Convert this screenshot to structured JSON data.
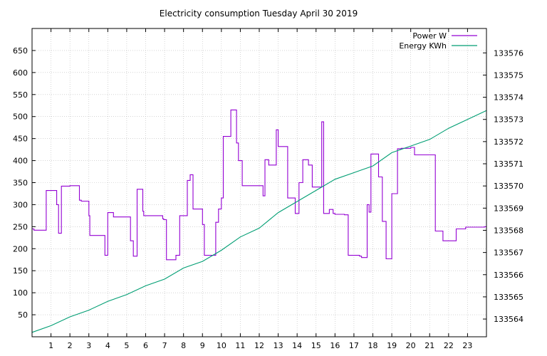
{
  "chart_data": {
    "type": "line",
    "title": "Electricity consumption Tuesday April 30 2019",
    "xlabel": "",
    "ylabel": "",
    "xlim": [
      0,
      24
    ],
    "ylim": [
      0,
      700
    ],
    "y2lim": [
      133563.2,
      133577.1
    ],
    "grid": true,
    "legend_position": "top-right",
    "x_ticks": [
      "1",
      "2",
      "3",
      "4",
      "5",
      "6",
      "7",
      "8",
      "9",
      "10",
      "11",
      "12",
      "13",
      "14",
      "15",
      "16",
      "17",
      "18",
      "19",
      "20",
      "21",
      "22",
      "23"
    ],
    "y_ticks": [
      "50",
      "100",
      "150",
      "200",
      "250",
      "300",
      "350",
      "400",
      "450",
      "500",
      "550",
      "600",
      "650"
    ],
    "y2_ticks": [
      "133564",
      "133565",
      "133566",
      "133567",
      "133568",
      "133569",
      "133570",
      "133571",
      "133572",
      "133573",
      "133574",
      "133575",
      "133576"
    ],
    "series": [
      {
        "name": "Power W",
        "axis": "left",
        "color": "#9400d3",
        "step": true,
        "x": [
          0,
          0.1,
          0.75,
          1.3,
          1.4,
          1.55,
          2.0,
          2.5,
          2.6,
          3.0,
          3.05,
          3.8,
          3.85,
          4.0,
          4.3,
          5.2,
          5.35,
          5.55,
          5.65,
          5.85,
          5.9,
          6.1,
          6.9,
          6.95,
          7.1,
          7.2,
          7.4,
          7.6,
          7.8,
          8.2,
          8.35,
          8.5,
          9.0,
          9.1,
          9.7,
          9.85,
          10.0,
          10.1,
          10.5,
          10.6,
          10.8,
          10.9,
          11.1,
          11.6,
          12.2,
          12.3,
          12.5,
          12.9,
          13.0,
          13.5,
          13.9,
          14.1,
          14.3,
          14.6,
          14.8,
          15.3,
          15.4,
          15.7,
          15.9,
          16.0,
          16.5,
          16.7,
          17.3,
          17.4,
          17.7,
          17.8,
          17.9,
          18.3,
          18.5,
          18.7,
          18.8,
          19.0,
          19.3,
          19.5,
          20.0,
          20.2,
          21.3,
          21.4,
          21.7,
          21.8,
          22.4,
          22.5,
          22.8,
          22.9,
          23.4,
          23.9
        ],
        "values": [
          245,
          242,
          332,
          300,
          235,
          342,
          343,
          310,
          308,
          275,
          230,
          230,
          185,
          282,
          272,
          218,
          183,
          335,
          335,
          285,
          275,
          275,
          268,
          266,
          175,
          175,
          175,
          185,
          275,
          355,
          368,
          290,
          255,
          185,
          260,
          290,
          315,
          455,
          515,
          515,
          440,
          400,
          343,
          343,
          320,
          402,
          390,
          470,
          432,
          315,
          280,
          350,
          402,
          390,
          340,
          488,
          280,
          289,
          280,
          278,
          277,
          185,
          183,
          180,
          300,
          283,
          415,
          363,
          262,
          177,
          177,
          325,
          427,
          428,
          430,
          413,
          240,
          240,
          218,
          218,
          245,
          245,
          245,
          249,
          249,
          250
        ]
      },
      {
        "name": "Energy KWh",
        "axis": "right",
        "color": "#009e73",
        "step": false,
        "x": [
          0,
          1,
          2,
          3,
          4,
          5,
          6,
          7,
          8,
          9,
          10,
          11,
          12,
          13,
          14,
          15,
          16,
          17,
          18,
          19,
          20,
          21,
          22,
          23,
          24
        ],
        "values": [
          133563.4,
          133563.7,
          133564.1,
          133564.4,
          133564.8,
          133565.1,
          133565.5,
          133565.8,
          133566.3,
          133566.6,
          133567.1,
          133567.7,
          133568.1,
          133568.8,
          133569.3,
          133569.8,
          133570.3,
          133570.6,
          133570.9,
          133571.5,
          133571.8,
          133572.1,
          133572.6,
          133573.0,
          133573.4
        ]
      }
    ]
  }
}
